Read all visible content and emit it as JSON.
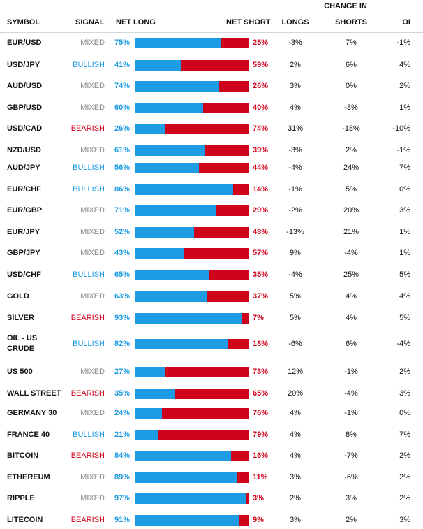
{
  "header": {
    "change_in": "CHANGE IN",
    "symbol": "SYMBOL",
    "signal": "SIGNAL",
    "net_long": "NET LONG",
    "net_short": "NET SHORT",
    "longs": "LONGS",
    "shorts": "SHORTS",
    "oi": "OI"
  },
  "colors": {
    "long": "#1d9be3",
    "short": "#d0021b",
    "mixed": "#888888"
  },
  "rows": [
    {
      "symbol": "EUR/USD",
      "signal": "MIXED",
      "long": "75%",
      "short": "25%",
      "longs": "-3%",
      "shorts": "7%",
      "oi": "-1%"
    },
    {
      "symbol": "USD/JPY",
      "signal": "BULLISH",
      "long": "41%",
      "short": "59%",
      "longs": "2%",
      "shorts": "6%",
      "oi": "4%"
    },
    {
      "symbol": "AUD/USD",
      "signal": "MIXED",
      "long": "74%",
      "short": "26%",
      "longs": "3%",
      "shorts": "0%",
      "oi": "2%"
    },
    {
      "symbol": "GBP/USD",
      "signal": "MIXED",
      "long": "60%",
      "short": "40%",
      "longs": "4%",
      "shorts": "-3%",
      "oi": "1%"
    },
    {
      "symbol": "USD/CAD",
      "signal": "BEARISH",
      "long": "26%",
      "short": "74%",
      "longs": "31%",
      "shorts": "-18%",
      "oi": "-10%"
    },
    {
      "symbol": "NZD/USD",
      "signal": "MIXED",
      "long": "61%",
      "short": "39%",
      "longs": "-3%",
      "shorts": "2%",
      "oi": "-1%"
    },
    {
      "symbol": "AUD/JPY",
      "signal": "BULLISH",
      "long": "56%",
      "short": "44%",
      "longs": "-4%",
      "shorts": "24%",
      "oi": "7%"
    },
    {
      "symbol": "EUR/CHF",
      "signal": "BULLISH",
      "long": "86%",
      "short": "14%",
      "longs": "-1%",
      "shorts": "5%",
      "oi": "0%"
    },
    {
      "symbol": "EUR/GBP",
      "signal": "MIXED",
      "long": "71%",
      "short": "29%",
      "longs": "-2%",
      "shorts": "20%",
      "oi": "3%"
    },
    {
      "symbol": "EUR/JPY",
      "signal": "MIXED",
      "long": "52%",
      "short": "48%",
      "longs": "-13%",
      "shorts": "21%",
      "oi": "1%"
    },
    {
      "symbol": "GBP/JPY",
      "signal": "MIXED",
      "long": "43%",
      "short": "57%",
      "longs": "9%",
      "shorts": "-4%",
      "oi": "1%"
    },
    {
      "symbol": "USD/CHF",
      "signal": "BULLISH",
      "long": "65%",
      "short": "35%",
      "longs": "-4%",
      "shorts": "25%",
      "oi": "5%"
    },
    {
      "symbol": "GOLD",
      "signal": "MIXED",
      "long": "63%",
      "short": "37%",
      "longs": "5%",
      "shorts": "4%",
      "oi": "4%"
    },
    {
      "symbol": "SILVER",
      "signal": "BEARISH",
      "long": "93%",
      "short": "7%",
      "longs": "5%",
      "shorts": "4%",
      "oi": "5%"
    },
    {
      "symbol": "OIL - US CRUDE",
      "signal": "BULLISH",
      "long": "82%",
      "short": "18%",
      "longs": "-6%",
      "shorts": "6%",
      "oi": "-4%"
    },
    {
      "symbol": "US 500",
      "signal": "MIXED",
      "long": "27%",
      "short": "73%",
      "longs": "12%",
      "shorts": "-1%",
      "oi": "2%"
    },
    {
      "symbol": "WALL STREET",
      "signal": "BEARISH",
      "long": "35%",
      "short": "65%",
      "longs": "20%",
      "shorts": "-4%",
      "oi": "3%"
    },
    {
      "symbol": "GERMANY 30",
      "signal": "MIXED",
      "long": "24%",
      "short": "76%",
      "longs": "4%",
      "shorts": "-1%",
      "oi": "0%"
    },
    {
      "symbol": "FRANCE 40",
      "signal": "BULLISH",
      "long": "21%",
      "short": "79%",
      "longs": "4%",
      "shorts": "8%",
      "oi": "7%"
    },
    {
      "symbol": "BITCOIN",
      "signal": "BEARISH",
      "long": "84%",
      "short": "16%",
      "longs": "4%",
      "shorts": "-7%",
      "oi": "2%"
    },
    {
      "symbol": "ETHEREUM",
      "signal": "MIXED",
      "long": "89%",
      "short": "11%",
      "longs": "3%",
      "shorts": "-6%",
      "oi": "2%"
    },
    {
      "symbol": "RIPPLE",
      "signal": "MIXED",
      "long": "97%",
      "short": "3%",
      "longs": "2%",
      "shorts": "3%",
      "oi": "2%"
    },
    {
      "symbol": "LITECOIN",
      "signal": "BEARISH",
      "long": "91%",
      "short": "9%",
      "longs": "3%",
      "shorts": "2%",
      "oi": "3%"
    }
  ]
}
